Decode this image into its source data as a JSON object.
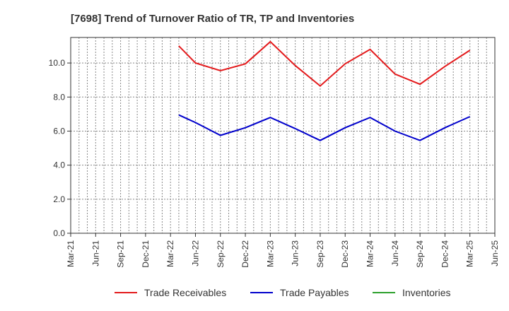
{
  "chart_data": {
    "type": "line",
    "title": "[7698]  Trend of Turnover Ratio of TR, TP and Inventories",
    "xlabel": "",
    "ylabel": "",
    "x_ticks": [
      "Mar-21",
      "Jun-21",
      "Sep-21",
      "Dec-21",
      "Mar-22",
      "Jun-22",
      "Sep-22",
      "Dec-22",
      "Mar-23",
      "Jun-23",
      "Sep-23",
      "Dec-23",
      "Mar-24",
      "Jun-24",
      "Sep-24",
      "Dec-24",
      "Mar-25",
      "Jun-25"
    ],
    "y_ticks": [
      "0.0",
      "2.0",
      "4.0",
      "6.0",
      "8.0",
      "10.0"
    ],
    "ylim": [
      0,
      11.5
    ],
    "grid": true,
    "legend_position": "bottom",
    "series": [
      {
        "name": "Trade Receivables",
        "color": "#e31a1c",
        "x": [
          "Apr-22",
          "Jun-22",
          "Sep-22",
          "Dec-22",
          "Mar-23",
          "Jun-23",
          "Sep-23",
          "Dec-23",
          "Mar-24",
          "Jun-24",
          "Sep-24",
          "Dec-24",
          "Mar-25"
        ],
        "values": [
          11.0,
          10.0,
          9.55,
          9.95,
          11.25,
          9.85,
          8.65,
          9.95,
          10.8,
          9.35,
          8.75,
          9.8,
          10.75
        ]
      },
      {
        "name": "Trade Payables",
        "color": "#0000cc",
        "x": [
          "Apr-22",
          "Jun-22",
          "Sep-22",
          "Dec-22",
          "Mar-23",
          "Jun-23",
          "Sep-23",
          "Dec-23",
          "Mar-24",
          "Jun-24",
          "Sep-24",
          "Dec-24",
          "Mar-25"
        ],
        "values": [
          6.95,
          6.5,
          5.75,
          6.2,
          6.8,
          6.15,
          5.45,
          6.2,
          6.8,
          6.0,
          5.45,
          6.2,
          6.85
        ]
      },
      {
        "name": "Inventories",
        "color": "#2ca02c",
        "x": [],
        "values": []
      }
    ]
  }
}
